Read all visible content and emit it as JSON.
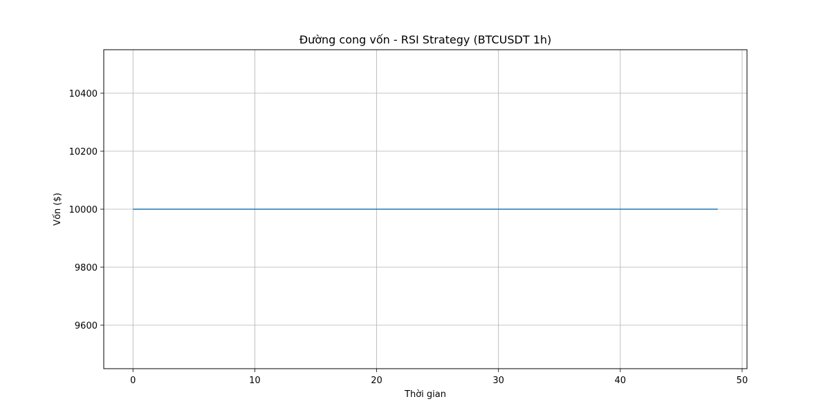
{
  "chart_data": {
    "type": "line",
    "title": "Đường cong vốn - RSI Strategy (BTCUSDT 1h)",
    "xlabel": "Thời gian",
    "ylabel": "Vốn ($)",
    "xlim": [
      -2.4,
      50.4
    ],
    "ylim": [
      9450,
      10550
    ],
    "xticks": [
      0,
      10,
      20,
      30,
      40,
      50
    ],
    "xtick_labels": [
      "0",
      "10",
      "20",
      "30",
      "40",
      "50"
    ],
    "yticks": [
      9600,
      9800,
      10000,
      10200,
      10400
    ],
    "ytick_labels": [
      "9600",
      "9800",
      "10000",
      "10200",
      "10400"
    ],
    "grid": true,
    "series": [
      {
        "color": "#1f77b4",
        "x": [
          0,
          48
        ],
        "y": [
          10000,
          10000
        ]
      }
    ]
  }
}
